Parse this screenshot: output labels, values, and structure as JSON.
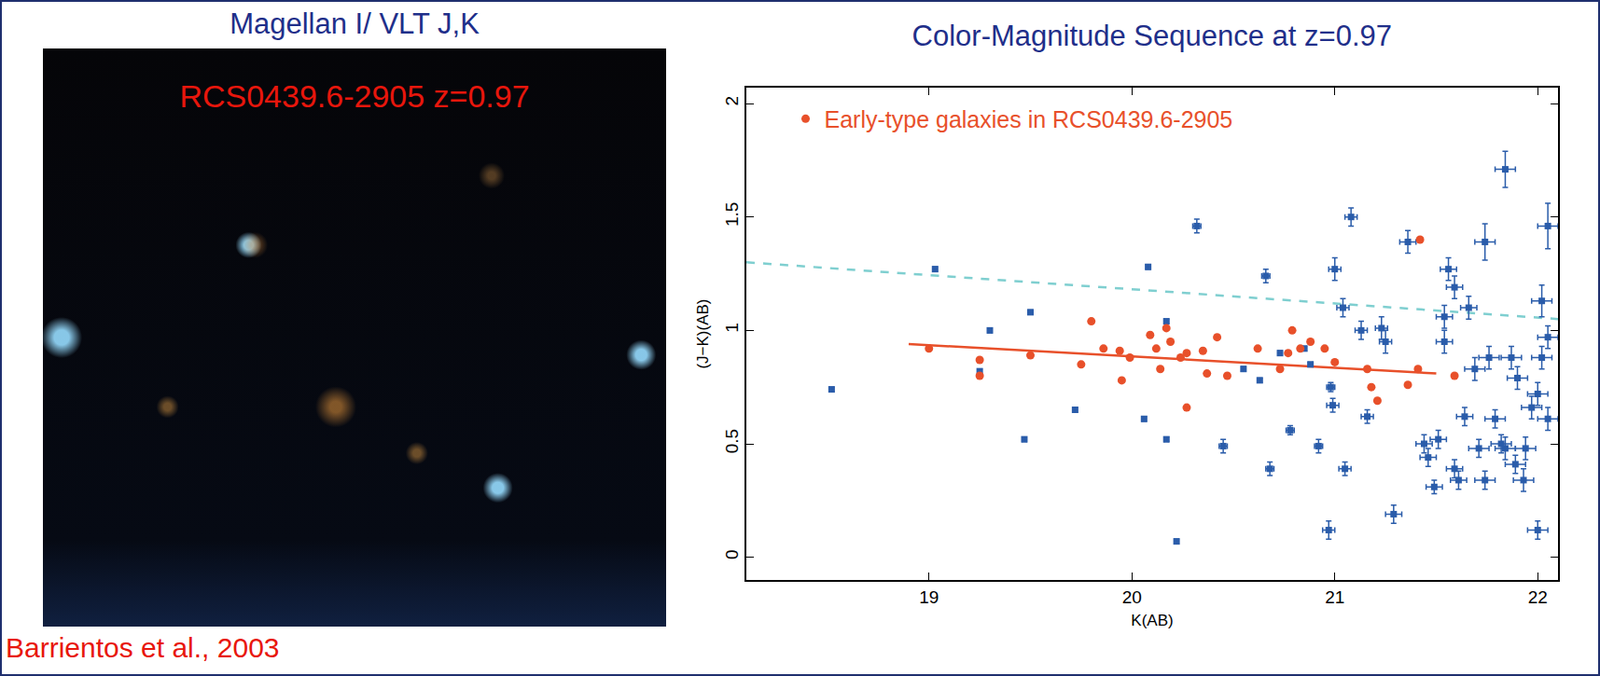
{
  "slide": {
    "image_title": "Magellan I/ VLT J,K",
    "image_label": "RCS0439.6-2905  z=0.97",
    "credit": "Barrientos et al., 2003"
  },
  "chart_data": {
    "type": "scatter",
    "title": "Color-Magnitude Sequence at z=0.97",
    "x_label": "K(AB)",
    "y_label": "(J−K)(AB)",
    "xlim": [
      18.1,
      22.1
    ],
    "ylim": [
      -0.1,
      2.07
    ],
    "xticks": [
      19,
      20,
      21,
      22
    ],
    "yticks": [
      0,
      0.5,
      1,
      1.5,
      2
    ],
    "grid": false,
    "legend": "upper left",
    "series": [
      {
        "name": "Early-type galaxies in RCS0439.6-2905",
        "color": "#e8502a",
        "marker": "circle",
        "x": [
          19.0,
          19.25,
          19.25,
          19.5,
          19.75,
          19.8,
          19.86,
          19.94,
          19.95,
          19.99,
          20.09,
          20.12,
          20.14,
          20.17,
          20.19,
          20.24,
          20.27,
          20.27,
          20.35,
          20.37,
          20.42,
          20.47,
          20.62,
          20.73,
          20.77,
          20.79,
          20.83,
          20.88,
          20.95,
          21.0,
          21.16,
          21.18,
          21.21,
          21.36,
          21.41,
          21.42,
          21.59
        ],
        "values": [
          0.92,
          0.8,
          0.87,
          0.89,
          0.85,
          1.04,
          0.92,
          0.91,
          0.78,
          0.88,
          0.98,
          0.92,
          0.83,
          1.01,
          0.95,
          0.88,
          0.9,
          0.66,
          0.91,
          0.81,
          0.97,
          0.8,
          0.92,
          0.83,
          0.9,
          1.0,
          0.92,
          0.95,
          0.92,
          0.86,
          0.83,
          0.75,
          0.69,
          0.76,
          0.83,
          1.4,
          0.8
        ]
      }
    ],
    "other_points": {
      "color": "#2a5caa",
      "marker": "square",
      "x": [
        18.52,
        19.03,
        19.3,
        19.25,
        19.47,
        19.5,
        19.72,
        20.08,
        20.06,
        20.17,
        20.17,
        20.22,
        20.32,
        20.55,
        20.63,
        20.66,
        20.68,
        20.73,
        20.78,
        20.85,
        20.88,
        20.98,
        20.92,
        20.45,
        20.99,
        21.0,
        21.04,
        21.05,
        20.97,
        21.08,
        21.13,
        21.16,
        21.23,
        21.25,
        21.29,
        21.36,
        21.44,
        21.46,
        21.49,
        21.51,
        21.54,
        21.54,
        21.56,
        21.59,
        21.59,
        21.61,
        21.64,
        21.66,
        21.69,
        21.71,
        21.74,
        21.76,
        21.79,
        21.82,
        21.84,
        21.84,
        21.87,
        21.89,
        21.9,
        21.93,
        21.94,
        21.97,
        21.74,
        22.05,
        22.02,
        22.0,
        22.02,
        22.05,
        22.0,
        22.05
      ],
      "values": [
        0.74,
        1.27,
        1.0,
        0.82,
        0.52,
        1.08,
        0.65,
        1.28,
        0.61,
        1.04,
        0.52,
        0.07,
        1.46,
        0.83,
        0.78,
        1.24,
        0.39,
        0.9,
        0.56,
        0.92,
        0.85,
        0.75,
        0.49,
        0.49,
        0.67,
        1.27,
        1.1,
        0.39,
        0.12,
        1.5,
        1.0,
        0.62,
        1.01,
        0.95,
        0.19,
        1.39,
        0.5,
        0.44,
        0.31,
        0.52,
        0.95,
        1.06,
        1.27,
        1.19,
        0.39,
        0.34,
        0.62,
        1.1,
        0.83,
        0.48,
        0.34,
        0.88,
        0.61,
        0.5,
        1.71,
        0.48,
        0.88,
        0.41,
        0.79,
        0.34,
        0.48,
        0.66,
        1.39,
        1.46,
        1.13,
        0.72,
        0.88,
        0.97,
        0.12,
        0.61
      ],
      "x_err": [
        0.01,
        0.01,
        0.01,
        0.01,
        0.01,
        0.01,
        0.01,
        0.01,
        0.01,
        0.01,
        0.01,
        0.01,
        0.02,
        0.01,
        0.01,
        0.02,
        0.02,
        0.01,
        0.02,
        0.01,
        0.01,
        0.02,
        0.02,
        0.02,
        0.03,
        0.03,
        0.03,
        0.03,
        0.03,
        0.03,
        0.03,
        0.03,
        0.03,
        0.03,
        0.04,
        0.04,
        0.04,
        0.04,
        0.04,
        0.04,
        0.04,
        0.04,
        0.04,
        0.04,
        0.04,
        0.04,
        0.04,
        0.04,
        0.05,
        0.05,
        0.05,
        0.05,
        0.05,
        0.05,
        0.05,
        0.05,
        0.05,
        0.05,
        0.05,
        0.05,
        0.05,
        0.05,
        0.05,
        0.05,
        0.05,
        0.05,
        0.05,
        0.05,
        0.05,
        0.05
      ],
      "y_err": [
        0.01,
        0.01,
        0.01,
        0.01,
        0.01,
        0.01,
        0.01,
        0.01,
        0.01,
        0.01,
        0.01,
        0.01,
        0.03,
        0.01,
        0.01,
        0.03,
        0.03,
        0.01,
        0.02,
        0.01,
        0.01,
        0.02,
        0.03,
        0.03,
        0.03,
        0.05,
        0.04,
        0.03,
        0.04,
        0.04,
        0.04,
        0.03,
        0.05,
        0.05,
        0.04,
        0.05,
        0.04,
        0.04,
        0.03,
        0.04,
        0.05,
        0.05,
        0.05,
        0.05,
        0.04,
        0.04,
        0.04,
        0.05,
        0.05,
        0.04,
        0.04,
        0.05,
        0.04,
        0.04,
        0.08,
        0.05,
        0.05,
        0.04,
        0.05,
        0.05,
        0.05,
        0.05,
        0.08,
        0.1,
        0.07,
        0.05,
        0.05,
        0.05,
        0.04,
        0.05
      ]
    },
    "fit_lines": [
      {
        "color": "#e8502a",
        "line_style": "solid",
        "x": [
          18.9,
          21.5
        ],
        "values": [
          0.94,
          0.81
        ]
      },
      {
        "color": "#7fcfd0",
        "line_style": "dash",
        "x": [
          18.1,
          22.1
        ],
        "values": [
          1.3,
          1.05
        ]
      }
    ]
  }
}
